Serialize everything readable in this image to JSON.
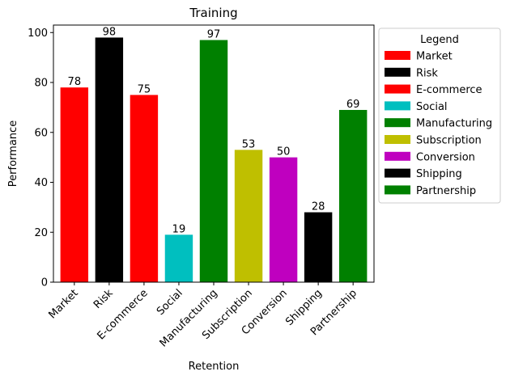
{
  "chart_data": {
    "type": "bar",
    "title": "Training",
    "xlabel": "Retention",
    "ylabel": "Performance",
    "categories": [
      "Market",
      "Risk",
      "E-commerce",
      "Social",
      "Manufacturing",
      "Subscription",
      "Conversion",
      "Shipping",
      "Partnership"
    ],
    "values": [
      78,
      98,
      75,
      19,
      97,
      53,
      50,
      28,
      69
    ],
    "colors": [
      "#ff0000",
      "#000000",
      "#ff0000",
      "#00bfbf",
      "#008000",
      "#bfbf00",
      "#bf00bf",
      "#000000",
      "#008000"
    ],
    "ylim": [
      0,
      103
    ],
    "yticks": [
      0,
      20,
      40,
      60,
      80,
      100
    ],
    "grid": false,
    "legend": {
      "title": "Legend",
      "placement": "outside-right",
      "entries": [
        "Market",
        "Risk",
        "E-commerce",
        "Social",
        "Manufacturing",
        "Subscription",
        "Conversion",
        "Shipping",
        "Partnership"
      ]
    }
  }
}
